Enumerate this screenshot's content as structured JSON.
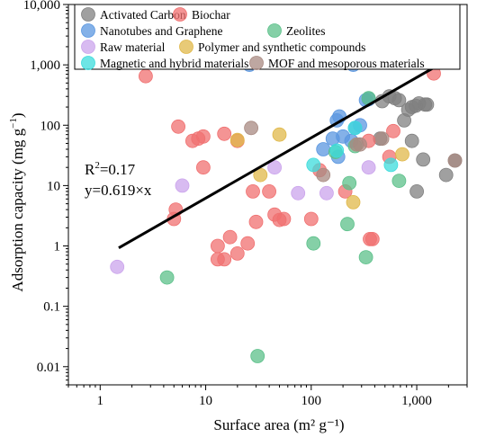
{
  "chart_data": {
    "type": "scatter",
    "xlabel": "Surface area (m² g⁻¹)",
    "ylabel_main": "Adsorption capacity (mg g",
    "ylabel_exp": "−1",
    "ylabel_close": ")",
    "x_scale": "log",
    "y_scale": "log",
    "xlim": [
      0.5,
      3000
    ],
    "ylim": [
      0.005,
      10000
    ],
    "x_ticks": [
      {
        "value": 1,
        "label": "1"
      },
      {
        "value": 10,
        "label": "10"
      },
      {
        "value": 100,
        "label": "100"
      },
      {
        "value": 1000,
        "label": "1,000"
      }
    ],
    "y_ticks": [
      {
        "value": 0.01,
        "label": "0.01"
      },
      {
        "value": 0.1,
        "label": "0.1"
      },
      {
        "value": 1,
        "label": "1"
      },
      {
        "value": 10,
        "label": "10"
      },
      {
        "value": 100,
        "label": "100"
      },
      {
        "value": 1000,
        "label": "1,000"
      },
      {
        "value": 10000,
        "label": "10,000"
      }
    ],
    "grid": false,
    "legend_position": "top",
    "fit_line": {
      "slope": 0.619,
      "x_range": [
        1.5,
        2300
      ]
    },
    "annotation": {
      "r2_label": "R",
      "r2_exp": "2",
      "r2_value": "=0.17",
      "equation": "y=0.619×x"
    },
    "series": [
      {
        "name": "Activated Carbon",
        "color": "#808080",
        "points": [
          [
            450,
            60
          ],
          [
            550,
            300
          ],
          [
            620,
            280
          ],
          [
            680,
            260
          ],
          [
            760,
            120
          ],
          [
            830,
            180
          ],
          [
            900,
            200
          ],
          [
            980,
            210
          ],
          [
            1050,
            230
          ],
          [
            1200,
            220
          ],
          [
            1250,
            220
          ],
          [
            900,
            55
          ],
          [
            1000,
            8
          ],
          [
            1150,
            27
          ],
          [
            2300,
            26
          ],
          [
            1900,
            15
          ],
          [
            470,
            250
          ]
        ]
      },
      {
        "name": "Biochar",
        "color": "#f07070",
        "points": [
          [
            2.7,
            650
          ],
          [
            5.5,
            95
          ],
          [
            7.5,
            55
          ],
          [
            8.5,
            60
          ],
          [
            9.5,
            65
          ],
          [
            9.5,
            20
          ],
          [
            15,
            72
          ],
          [
            20,
            55
          ],
          [
            28,
            8
          ],
          [
            5,
            2.8
          ],
          [
            5.2,
            4
          ],
          [
            13,
            1
          ],
          [
            13,
            0.6
          ],
          [
            15,
            0.6
          ],
          [
            17,
            1.4
          ],
          [
            20,
            0.75
          ],
          [
            25,
            1.1
          ],
          [
            30,
            2.5
          ],
          [
            40,
            8
          ],
          [
            45,
            3.3
          ],
          [
            50,
            2.7
          ],
          [
            55,
            2.8
          ],
          [
            100,
            2.8
          ],
          [
            120,
            18
          ],
          [
            210,
            8
          ],
          [
            350,
            55
          ],
          [
            360,
            1.3
          ],
          [
            380,
            1.3
          ],
          [
            550,
            30
          ],
          [
            600,
            80
          ],
          [
            1450,
            720
          ]
        ]
      },
      {
        "name": "Nanotubes and Graphene",
        "color": "#5b97e0",
        "points": [
          [
            26,
            1000
          ],
          [
            250,
            1000
          ],
          [
            360,
            1100
          ],
          [
            130,
            40
          ],
          [
            160,
            60
          ],
          [
            175,
            120
          ],
          [
            185,
            140
          ],
          [
            180,
            30
          ],
          [
            200,
            65
          ],
          [
            240,
            55
          ],
          [
            260,
            90
          ],
          [
            290,
            100
          ],
          [
            330,
            260
          ],
          [
            350,
            270
          ]
        ]
      },
      {
        "name": "Zeolites",
        "color": "#5cc08a",
        "points": [
          [
            4.3,
            0.3
          ],
          [
            31,
            0.015
          ],
          [
            105,
            1.1
          ],
          [
            220,
            2.3
          ],
          [
            230,
            11
          ],
          [
            260,
            45
          ],
          [
            330,
            0.65
          ],
          [
            350,
            280
          ],
          [
            680,
            12
          ],
          [
            170,
            36
          ]
        ]
      },
      {
        "name": "Raw material",
        "color": "#cba4ec",
        "points": [
          [
            1.45,
            0.45
          ],
          [
            6,
            10
          ],
          [
            45,
            20
          ],
          [
            75,
            7.5
          ],
          [
            140,
            7.5
          ],
          [
            350,
            20
          ]
        ]
      },
      {
        "name": "Polymer and synthetic compounds",
        "color": "#e0b84a",
        "points": [
          [
            20,
            57
          ],
          [
            33,
            15
          ],
          [
            50,
            70
          ],
          [
            250,
            5.3
          ],
          [
            730,
            33
          ]
        ]
      },
      {
        "name": "Magnetic and hybrid materials",
        "color": "#3cdcdc",
        "points": [
          [
            105,
            22
          ],
          [
            175,
            38
          ],
          [
            570,
            22
          ],
          [
            260,
            90
          ]
        ]
      },
      {
        "name": "MOF and mesoporous materials",
        "color": "#a88a82",
        "points": [
          [
            27,
            90
          ],
          [
            130,
            15
          ],
          [
            270,
            48
          ],
          [
            290,
            48
          ],
          [
            470,
            60
          ],
          [
            2300,
            26
          ]
        ]
      }
    ]
  }
}
